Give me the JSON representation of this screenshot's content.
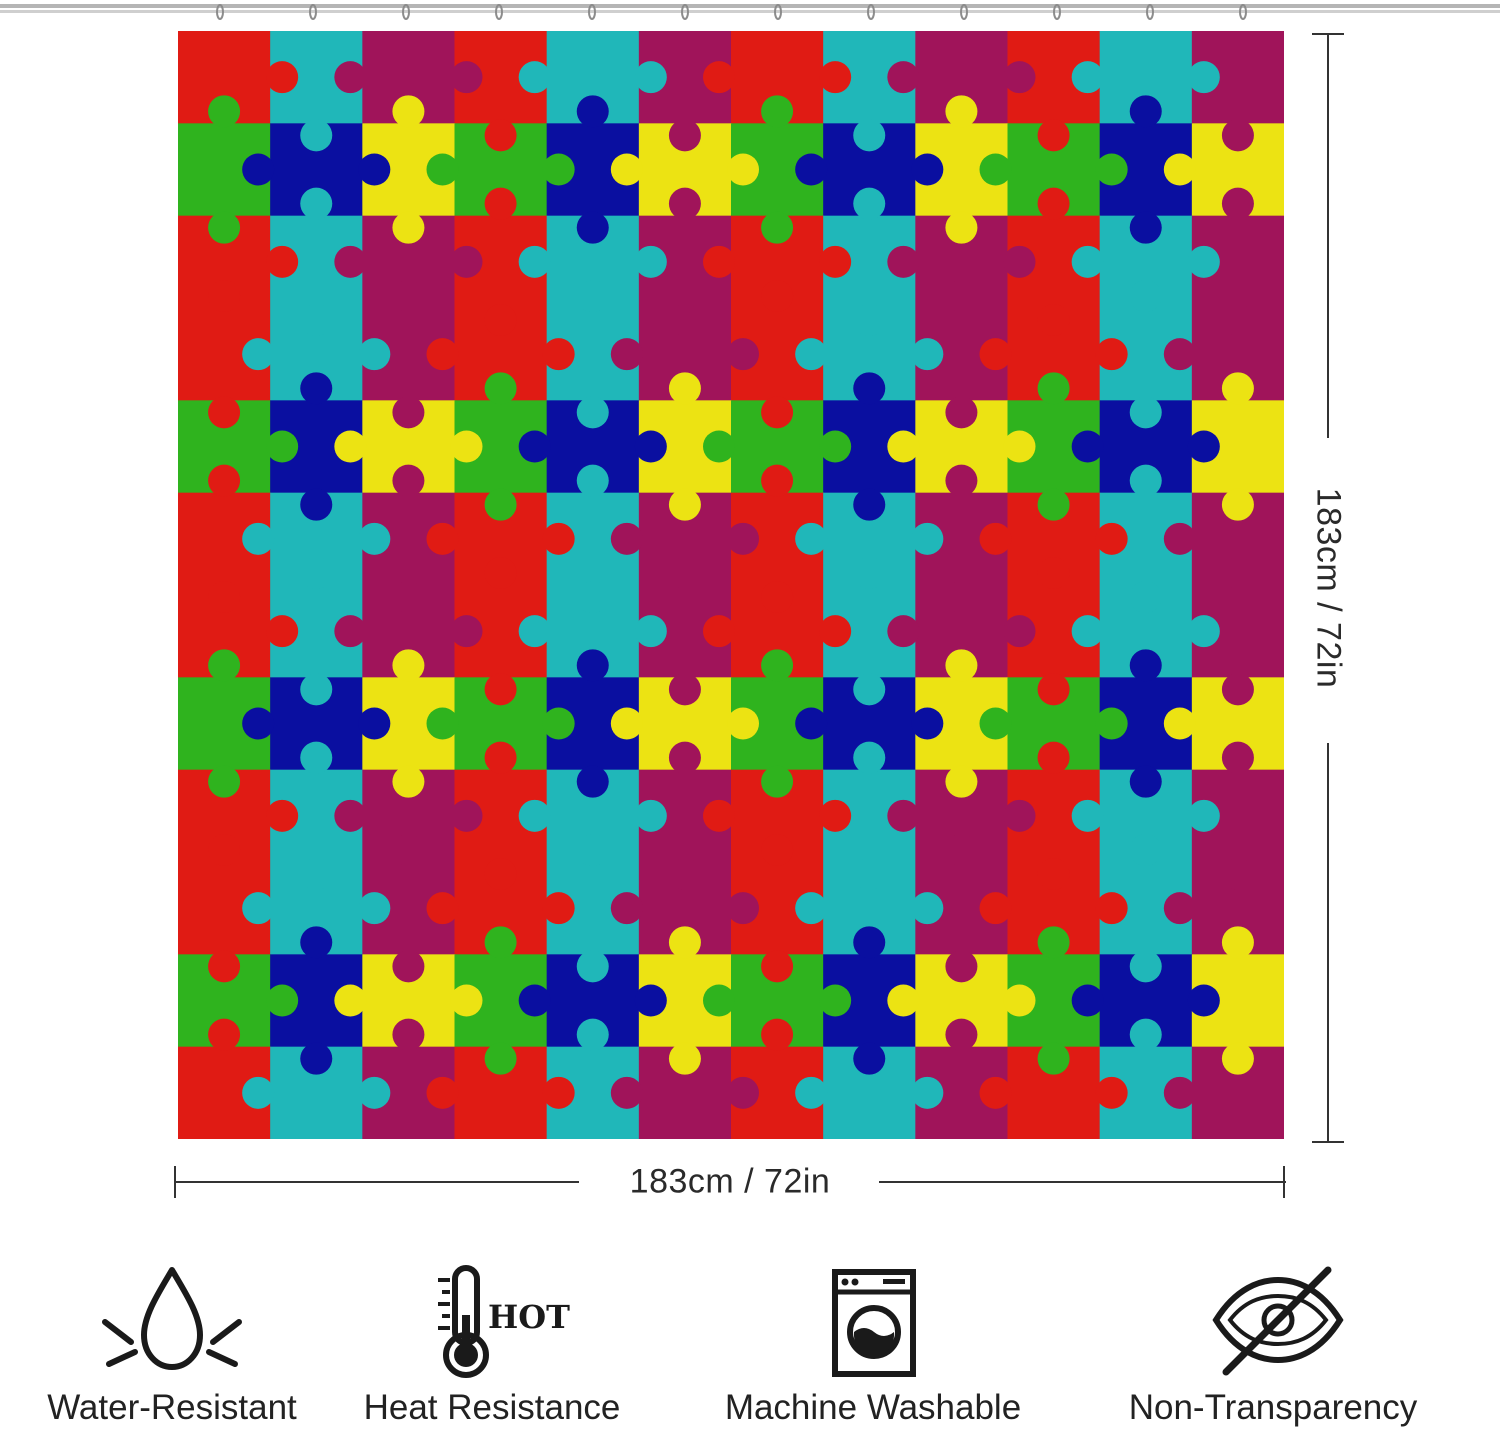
{
  "dimensions": {
    "height_label": "183cm / 72in",
    "width_label": "183cm / 72in"
  },
  "curtain": {
    "colors": {
      "red": "#e01b14",
      "yellow": "#ece313",
      "teal": "#20b7b9",
      "green": "#2fb31e",
      "purple": "#a0145a",
      "blue": "#0a0fa0"
    },
    "hooks": 12
  },
  "features": [
    {
      "label": "Water-Resistant",
      "icon": "water-drop-icon"
    },
    {
      "label": "Heat Resistance",
      "icon": "thermometer-hot-icon",
      "icon_text": "HOT"
    },
    {
      "label": "Machine Washable",
      "icon": "washing-machine-icon"
    },
    {
      "label": "Non-Transparency",
      "icon": "eye-crossed-icon"
    }
  ]
}
